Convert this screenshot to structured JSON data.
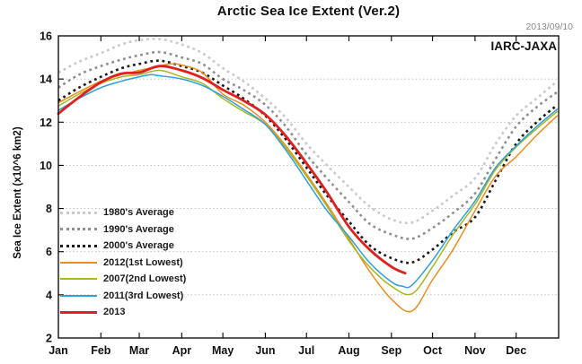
{
  "title": "Arctic Sea Ice Extent (Ver.2)",
  "date_label": "2013/09/10",
  "source_label": "IARC-JAXA",
  "colors": {
    "background": "#ffffff",
    "axis": "#000000",
    "grid": "#b8b8b8",
    "title_text": "#111111",
    "date_text": "#8a8a8a",
    "tick_label_text": "#111111"
  },
  "chart_data": {
    "type": "line",
    "title": "Arctic Sea Ice Extent (Ver.2)",
    "xlabel": "",
    "ylabel": "Sea Ice Extent (x10^6 km2)",
    "ylim": [
      2,
      16
    ],
    "xlim_days": [
      0,
      365
    ],
    "y_ticks": [
      2,
      4,
      6,
      8,
      10,
      12,
      14,
      16
    ],
    "x_tick_labels": [
      "Jan",
      "Feb",
      "Mar",
      "Apr",
      "May",
      "Jun",
      "Jul",
      "Aug",
      "Sep",
      "Oct",
      "Nov",
      "Dec"
    ],
    "month_start_days": [
      0,
      31,
      59,
      90,
      120,
      151,
      181,
      212,
      243,
      273,
      304,
      334
    ],
    "grid": "horizontal dotted lines at even values",
    "legend_position": "left-center inside plot",
    "annotations": [
      "2013/09/10",
      "IARC-JAXA"
    ],
    "series": [
      {
        "label": "1980's Average",
        "color": "#c9c9c9",
        "line_style": "dotted",
        "line_width": 2.6,
        "points": [
          [
            0,
            14.3
          ],
          [
            15,
            14.8
          ],
          [
            31,
            15.2
          ],
          [
            46,
            15.6
          ],
          [
            59,
            15.8
          ],
          [
            74,
            15.85
          ],
          [
            90,
            15.6
          ],
          [
            105,
            15.2
          ],
          [
            120,
            14.5
          ],
          [
            135,
            13.9
          ],
          [
            151,
            13.1
          ],
          [
            166,
            12.2
          ],
          [
            181,
            11.0
          ],
          [
            196,
            10.0
          ],
          [
            212,
            9.0
          ],
          [
            227,
            8.1
          ],
          [
            243,
            7.5
          ],
          [
            258,
            7.35
          ],
          [
            273,
            7.9
          ],
          [
            288,
            8.6
          ],
          [
            304,
            9.4
          ],
          [
            319,
            11.0
          ],
          [
            334,
            12.3
          ],
          [
            349,
            13.1
          ],
          [
            364,
            13.9
          ]
        ]
      },
      {
        "label": "1990's Average",
        "color": "#8f8f8f",
        "line_style": "dotted",
        "line_width": 2.6,
        "points": [
          [
            0,
            13.6
          ],
          [
            15,
            14.2
          ],
          [
            31,
            14.6
          ],
          [
            46,
            14.9
          ],
          [
            59,
            15.1
          ],
          [
            74,
            15.25
          ],
          [
            90,
            15.0
          ],
          [
            105,
            14.7
          ],
          [
            120,
            14.0
          ],
          [
            135,
            13.5
          ],
          [
            151,
            12.8
          ],
          [
            166,
            11.8
          ],
          [
            181,
            10.5
          ],
          [
            196,
            9.4
          ],
          [
            212,
            8.3
          ],
          [
            227,
            7.3
          ],
          [
            243,
            6.8
          ],
          [
            258,
            6.6
          ],
          [
            273,
            7.1
          ],
          [
            288,
            7.8
          ],
          [
            304,
            8.7
          ],
          [
            319,
            10.3
          ],
          [
            334,
            11.8
          ],
          [
            349,
            12.7
          ],
          [
            364,
            13.4
          ]
        ]
      },
      {
        "label": "2000's Average",
        "color": "#1a1a1a",
        "line_style": "dotted",
        "line_width": 2.6,
        "points": [
          [
            0,
            13.0
          ],
          [
            15,
            13.6
          ],
          [
            31,
            14.1
          ],
          [
            46,
            14.5
          ],
          [
            59,
            14.7
          ],
          [
            74,
            14.85
          ],
          [
            90,
            14.6
          ],
          [
            105,
            14.3
          ],
          [
            120,
            13.7
          ],
          [
            135,
            13.1
          ],
          [
            151,
            12.3
          ],
          [
            166,
            11.2
          ],
          [
            181,
            9.9
          ],
          [
            196,
            8.6
          ],
          [
            212,
            7.4
          ],
          [
            227,
            6.3
          ],
          [
            243,
            5.7
          ],
          [
            258,
            5.5
          ],
          [
            273,
            6.1
          ],
          [
            288,
            6.9
          ],
          [
            304,
            7.6
          ],
          [
            319,
            9.3
          ],
          [
            334,
            11.0
          ],
          [
            349,
            12.0
          ],
          [
            364,
            12.8
          ]
        ]
      },
      {
        "label": "2012(1st Lowest)",
        "color": "#f08c1e",
        "line_style": "solid",
        "line_width": 1.5,
        "points": [
          [
            0,
            12.9
          ],
          [
            15,
            13.4
          ],
          [
            31,
            13.9
          ],
          [
            46,
            14.2
          ],
          [
            59,
            14.4
          ],
          [
            74,
            14.6
          ],
          [
            82,
            14.7
          ],
          [
            90,
            14.65
          ],
          [
            105,
            14.3
          ],
          [
            120,
            13.3
          ],
          [
            135,
            12.8
          ],
          [
            151,
            12.0
          ],
          [
            166,
            10.9
          ],
          [
            181,
            9.6
          ],
          [
            196,
            8.2
          ],
          [
            212,
            6.6
          ],
          [
            227,
            5.1
          ],
          [
            243,
            3.8
          ],
          [
            258,
            3.25
          ],
          [
            273,
            4.7
          ],
          [
            288,
            6.1
          ],
          [
            304,
            7.9
          ],
          [
            319,
            9.5
          ],
          [
            334,
            10.4
          ],
          [
            349,
            11.4
          ],
          [
            364,
            12.3
          ]
        ]
      },
      {
        "label": "2007(2nd Lowest)",
        "color": "#a6b71f",
        "line_style": "solid",
        "line_width": 1.5,
        "points": [
          [
            0,
            12.75
          ],
          [
            15,
            13.3
          ],
          [
            31,
            13.8
          ],
          [
            46,
            14.1
          ],
          [
            59,
            14.2
          ],
          [
            74,
            14.4
          ],
          [
            90,
            14.1
          ],
          [
            105,
            13.8
          ],
          [
            120,
            13.1
          ],
          [
            135,
            12.5
          ],
          [
            151,
            11.9
          ],
          [
            166,
            10.8
          ],
          [
            181,
            9.5
          ],
          [
            196,
            8.1
          ],
          [
            212,
            6.5
          ],
          [
            227,
            5.3
          ],
          [
            243,
            4.4
          ],
          [
            258,
            4.05
          ],
          [
            273,
            5.3
          ],
          [
            288,
            6.8
          ],
          [
            304,
            8.2
          ],
          [
            319,
            9.8
          ],
          [
            334,
            10.85
          ],
          [
            349,
            11.7
          ],
          [
            364,
            12.5
          ]
        ]
      },
      {
        "label": "2011(3rd Lowest)",
        "color": "#2ba0dc",
        "line_style": "solid",
        "line_width": 1.5,
        "points": [
          [
            0,
            12.55
          ],
          [
            15,
            13.1
          ],
          [
            31,
            13.6
          ],
          [
            46,
            13.9
          ],
          [
            59,
            14.1
          ],
          [
            67,
            14.2
          ],
          [
            74,
            14.15
          ],
          [
            90,
            14.0
          ],
          [
            105,
            13.7
          ],
          [
            120,
            13.2
          ],
          [
            135,
            12.6
          ],
          [
            151,
            11.9
          ],
          [
            166,
            10.7
          ],
          [
            181,
            9.3
          ],
          [
            196,
            7.9
          ],
          [
            212,
            6.7
          ],
          [
            227,
            5.5
          ],
          [
            243,
            4.6
          ],
          [
            251,
            4.4
          ],
          [
            258,
            4.45
          ],
          [
            273,
            5.6
          ],
          [
            288,
            7.0
          ],
          [
            304,
            8.35
          ],
          [
            319,
            9.9
          ],
          [
            334,
            10.9
          ],
          [
            349,
            11.8
          ],
          [
            364,
            12.6
          ]
        ]
      },
      {
        "label": "2013",
        "color": "#e11f1f",
        "line_style": "solid",
        "line_width": 2.8,
        "points": [
          [
            0,
            12.4
          ],
          [
            15,
            13.15
          ],
          [
            31,
            13.85
          ],
          [
            46,
            14.25
          ],
          [
            59,
            14.3
          ],
          [
            74,
            14.6
          ],
          [
            90,
            14.4
          ],
          [
            105,
            14.05
          ],
          [
            120,
            13.5
          ],
          [
            135,
            13.0
          ],
          [
            151,
            12.35
          ],
          [
            166,
            11.35
          ],
          [
            181,
            10.1
          ],
          [
            196,
            8.75
          ],
          [
            212,
            7.15
          ],
          [
            227,
            6.1
          ],
          [
            243,
            5.3
          ],
          [
            253,
            5.0
          ]
        ]
      }
    ]
  }
}
